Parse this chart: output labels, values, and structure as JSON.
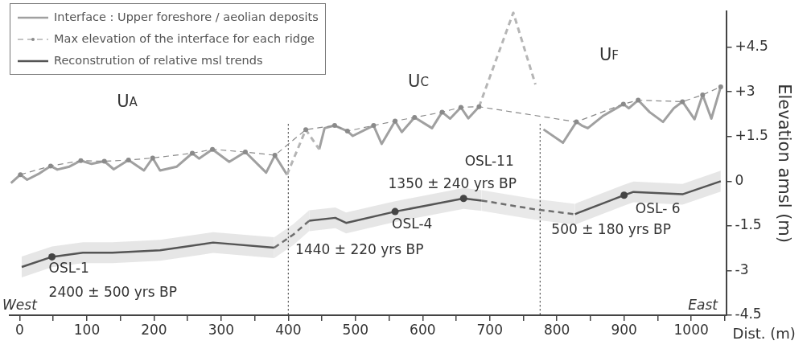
{
  "chart_data": {
    "type": "line",
    "ylabel": "Elevation amsl (m)",
    "xlabel": "Dist. (m)",
    "xlim": [
      -15,
      1052
    ],
    "ylim": [
      -4.5,
      5.7
    ],
    "xticks": [
      0,
      {
        "value": 50,
        "label": null
      },
      100,
      {
        "value": 150,
        "label": null
      },
      200,
      {
        "value": 250,
        "label": null
      },
      300,
      {
        "value": 350,
        "label": null
      },
      400,
      {
        "value": 450,
        "label": null
      },
      500,
      {
        "value": 550,
        "label": null
      },
      600,
      {
        "value": 650,
        "label": null
      },
      700,
      {
        "value": 750,
        "label": null
      },
      800,
      {
        "value": 850,
        "label": null
      },
      900,
      {
        "value": 950,
        "label": null
      },
      1000,
      {
        "value": 1050,
        "label": null
      }
    ],
    "yticks": [
      -4.5,
      -3,
      -1.5,
      0,
      {
        "value": 1.5,
        "label": "+1.5"
      },
      {
        "value": 3,
        "label": "+3"
      },
      {
        "value": 4.5,
        "label": "+4.5"
      }
    ],
    "grid": false,
    "legend": "top left",
    "series": [
      {
        "name": "Interface : Upper foreshore / aeolian deposits",
        "color": "#a0a0a0",
        "line_style": "solid",
        "x": [
          -13,
          1,
          11,
          30,
          46,
          56,
          74,
          91,
          107,
          126,
          140,
          162,
          185,
          198,
          209,
          234,
          257,
          267,
          287,
          312,
          336,
          367,
          380,
          398,
          420,
          446,
          454,
          469,
          488,
          496,
          527,
          539,
          559,
          569,
          588,
          614,
          629,
          641,
          657,
          668,
          684,
          730,
          780,
          809,
          829,
          837,
          846,
          868,
          899,
          907,
          921,
          938,
          958,
          974,
          987,
          1005,
          1017,
          1030,
          1044
        ],
        "values": [
          -0.06,
          0.22,
          0.05,
          0.27,
          0.51,
          0.39,
          0.49,
          0.69,
          0.58,
          0.67,
          0.4,
          0.71,
          0.36,
          0.78,
          0.36,
          0.49,
          0.94,
          0.76,
          1.07,
          0.65,
          0.98,
          0.29,
          0.87,
          0.22,
          null,
          1.07,
          1.78,
          1.87,
          1.68,
          1.52,
          1.87,
          1.25,
          2.02,
          1.65,
          2.14,
          1.78,
          2.32,
          2.1,
          2.48,
          2.11,
          2.5,
          null,
          1.74,
          1.29,
          1.99,
          1.87,
          1.78,
          2.18,
          2.59,
          2.45,
          2.72,
          2.32,
          1.99,
          2.45,
          2.67,
          2.08,
          2.9,
          2.1,
          3.17
        ]
      },
      {
        "color": "#b5b5b5",
        "line_style": "dashed",
        "x": [
          398,
          426,
          446,
          560,
          684,
          735,
          768
        ],
        "values": [
          0.22,
          1.73,
          1.07,
          null,
          2.5,
          5.66,
          3.25
        ]
      },
      {
        "name": "Max elevation of the interface for each ridge",
        "color": "#8a8a8a",
        "line_style": "dashed",
        "marker": "circle",
        "x": [
          1,
          46,
          91,
          126,
          162,
          198,
          257,
          287,
          336,
          380,
          426,
          469,
          488,
          527,
          559,
          588,
          629,
          657,
          684,
          829,
          899,
          921,
          987,
          1017,
          1044
        ],
        "values": [
          0.22,
          0.51,
          0.69,
          0.67,
          0.71,
          0.78,
          0.94,
          1.07,
          0.98,
          0.87,
          1.73,
          1.87,
          1.68,
          1.87,
          2.02,
          2.14,
          2.32,
          2.48,
          2.5,
          1.99,
          2.59,
          2.72,
          2.67,
          2.9,
          3.17
        ]
      },
      {
        "name": "Reconstrution of relative msl trends",
        "color": "#555555",
        "line_style": "solid",
        "x": [
          3,
          48,
          94,
          138,
          209,
          288,
          379,
          405,
          431,
          470,
          486,
          559,
          661,
          688,
          757,
          827,
          831,
          900,
          914,
          987,
          1044
        ],
        "values": [
          -2.88,
          -2.54,
          -2.4,
          -2.4,
          -2.32,
          -2.06,
          -2.23,
          null,
          -1.33,
          -1.23,
          -1.4,
          -1.02,
          -0.58,
          -0.65,
          null,
          -1.11,
          -1.07,
          -0.47,
          -0.36,
          -0.44,
          0
        ],
        "lower": [
          -3.23,
          -2.89,
          -2.75,
          -2.75,
          -2.67,
          -2.41,
          -2.58,
          null,
          -1.68,
          -1.58,
          -1.75,
          -1.37,
          -0.93,
          -1.0,
          null,
          -1.46,
          -1.42,
          -0.82,
          -0.71,
          -0.79,
          -0.35
        ],
        "upper": [
          -2.53,
          -2.19,
          -2.05,
          -2.05,
          -1.97,
          -1.71,
          -1.88,
          null,
          -0.98,
          -0.88,
          -1.05,
          -0.67,
          -0.23,
          -0.3,
          null,
          -0.76,
          -0.72,
          -0.12,
          -0.01,
          -0.09,
          0.35
        ]
      },
      {
        "color": "#6e6e6e",
        "line_style": "dashed",
        "x": [
          379,
          407,
          431,
          560,
          688,
          766,
          827
        ],
        "values": [
          -2.23,
          -1.8,
          -1.33,
          null,
          -0.65,
          -0.94,
          -1.11
        ],
        "lower": [
          -2.58,
          -2.15,
          -1.68,
          null,
          -1.0,
          -1.29,
          -1.46
        ],
        "upper": [
          -1.88,
          -1.45,
          -0.98,
          null,
          -0.3,
          -0.59,
          -0.76
        ]
      },
      {
        "color": "#444444",
        "type": "scatter",
        "marker": "circle",
        "x": [
          48,
          559,
          661,
          900
        ],
        "values": [
          -2.54,
          -1.02,
          -0.58,
          -0.47
        ]
      }
    ],
    "ref_lines": [
      {
        "axis": "x",
        "value": 400,
        "color": "#444444",
        "line_style": "dotted"
      },
      {
        "axis": "x",
        "value": 775,
        "color": "#444444",
        "line_style": "dotted"
      }
    ],
    "annotations": [
      "U$_{A}$",
      "U$_{C}$",
      "U$_{F}$",
      "West",
      "East",
      {
        "text": "OSL-1",
        "x": 48,
        "y": -2.54
      },
      {
        "text": "2400 ± 500 yrs BP",
        "x": 48,
        "y": -2.54
      },
      {
        "text": "OSL-4",
        "x": 559,
        "y": -1.02
      },
      {
        "text": "1440 ± 220 yrs BP",
        "x": 559,
        "y": -1.02
      },
      {
        "text": "OSL-11",
        "x": 661,
        "y": -0.58
      },
      {
        "text": "1350 ± 240 yrs BP",
        "x": 661,
        "y": -0.58
      },
      {
        "text": "OSL- 6",
        "x": 900,
        "y": -0.47
      },
      {
        "text": "500 ± 180 yrs BP",
        "x": 900,
        "y": -0.47
      }
    ]
  }
}
